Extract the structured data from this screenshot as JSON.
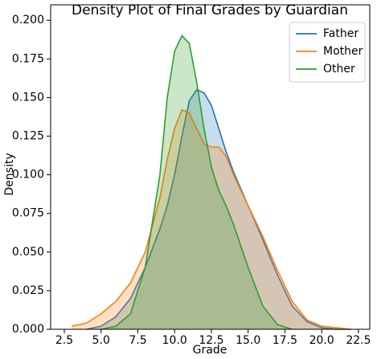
{
  "chart_data": {
    "type": "density",
    "title": "Density Plot of Final Grades by Guardian",
    "xlabel": "Grade",
    "ylabel": "Density",
    "x": [
      2,
      3,
      4,
      5,
      6,
      7,
      8,
      9,
      9.5,
      10,
      10.5,
      11,
      11.5,
      12,
      12.5,
      13,
      13.5,
      14,
      15,
      16,
      17,
      18,
      19,
      20,
      21,
      22
    ],
    "series": [
      {
        "name": "Father",
        "color": "#1f77b4",
        "values": [
          null,
          null,
          0,
          0.002,
          0.008,
          0.02,
          0.04,
          0.065,
          0.08,
          0.1,
          0.125,
          0.148,
          0.155,
          0.153,
          0.145,
          0.13,
          0.115,
          0.102,
          0.08,
          0.058,
          0.035,
          0.015,
          0.005,
          0.001,
          0,
          0
        ]
      },
      {
        "name": "Mother",
        "color": "#ff7f0e",
        "values": [
          null,
          0.002,
          0.004,
          0.01,
          0.018,
          0.03,
          0.05,
          0.085,
          0.11,
          0.13,
          0.142,
          0.14,
          0.13,
          0.12,
          0.118,
          0.118,
          0.112,
          0.1,
          0.08,
          0.06,
          0.038,
          0.018,
          0.006,
          0.002,
          0.001,
          0
        ]
      },
      {
        "name": "Other",
        "color": "#2ca02c",
        "values": [
          null,
          null,
          null,
          0,
          0.002,
          0.01,
          0.04,
          0.1,
          0.15,
          0.18,
          0.19,
          0.185,
          0.16,
          0.13,
          0.105,
          0.09,
          0.08,
          0.068,
          0.04,
          0.015,
          0.003,
          0,
          null,
          null,
          null,
          null
        ]
      }
    ],
    "xlim": [
      1.57,
      23.27
    ],
    "ylim": [
      0,
      0.21
    ],
    "xticks": [
      {
        "value": 2.5,
        "label": "2.5"
      },
      {
        "value": 5,
        "label": "5.0"
      },
      {
        "value": 7.5,
        "label": "7.5"
      },
      {
        "value": 10,
        "label": "10.0"
      },
      {
        "value": 12.5,
        "label": "12.5"
      },
      {
        "value": 15,
        "label": "15.0"
      },
      {
        "value": 17.5,
        "label": "17.5"
      },
      {
        "value": 20,
        "label": "20.0"
      },
      {
        "value": 22.5,
        "label": "22.5"
      }
    ],
    "yticks": [
      {
        "value": 0,
        "label": "0.000"
      },
      {
        "value": 0.025,
        "label": "0.025"
      },
      {
        "value": 0.05,
        "label": "0.050"
      },
      {
        "value": 0.075,
        "label": "0.075"
      },
      {
        "value": 0.1,
        "label": "0.100"
      },
      {
        "value": 0.125,
        "label": "0.125"
      },
      {
        "value": 0.15,
        "label": "0.150"
      },
      {
        "value": 0.175,
        "label": "0.175"
      },
      {
        "value": 0.2,
        "label": "0.200"
      }
    ],
    "legend": "upper right"
  }
}
